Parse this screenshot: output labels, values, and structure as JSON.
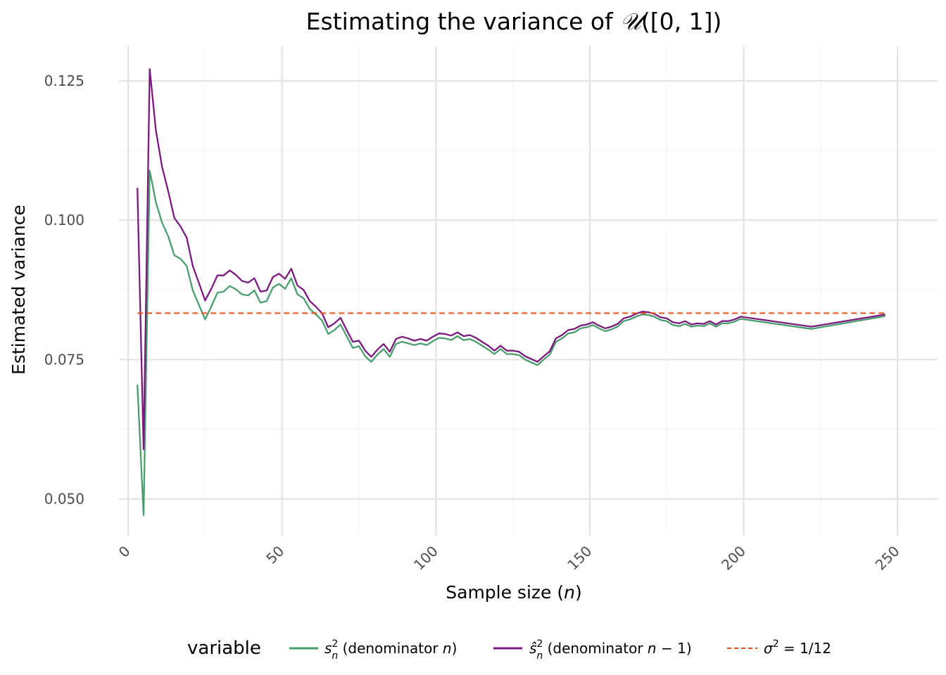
{
  "chart_data": {
    "type": "line",
    "title": "Estimating the variance of 𝒰([0, 1])",
    "title_prefix": "Estimating the variance of ",
    "title_symbol": "𝒰",
    "title_suffix": "([0, 1])",
    "xlabel": "Sample size (n)",
    "xlabel_prefix": "Sample size (",
    "xlabel_var": "n",
    "xlabel_suffix": ")",
    "ylabel": "Estimated variance",
    "xlim": [
      -3,
      263
    ],
    "ylim": [
      0.0434,
      0.1313
    ],
    "x_ticks": [
      0,
      50,
      100,
      150,
      200,
      250
    ],
    "x_tick_labels": [
      "0",
      "50",
      "100",
      "150",
      "200",
      "250"
    ],
    "y_ticks": [
      0.05,
      0.075,
      0.1,
      0.125
    ],
    "y_tick_labels": [
      "0.050",
      "0.075",
      "0.100",
      "0.125"
    ],
    "grid": true,
    "legend_position": "bottom",
    "legend_title": "variable",
    "x": [
      3,
      5,
      7,
      9,
      11,
      13,
      15,
      17,
      19,
      21,
      23,
      25,
      27,
      29,
      31,
      33,
      35,
      37,
      39,
      41,
      43,
      45,
      47,
      49,
      51,
      53,
      55,
      57,
      59,
      61,
      63,
      65,
      67,
      69,
      71,
      73,
      75,
      77,
      79,
      81,
      83,
      85,
      87,
      89,
      91,
      93,
      95,
      97,
      99,
      101,
      103,
      105,
      107,
      109,
      111,
      113,
      115,
      117,
      119,
      121,
      123,
      125,
      127,
      129,
      131,
      133,
      135,
      137,
      139,
      141,
      143,
      145,
      147,
      149,
      151,
      153,
      155,
      157,
      159,
      161,
      163,
      165,
      167,
      169,
      171,
      173,
      175,
      177,
      179,
      181,
      183,
      185,
      187,
      189,
      191,
      193,
      195,
      197,
      199,
      222,
      246
    ],
    "series": [
      {
        "name": "s_n^2 (denominator n)",
        "label_main": "s",
        "label_sup": "2",
        "label_sub": "n",
        "label_rest": " (denominator ",
        "label_var": "n",
        "label_end": ")",
        "color": "#4a9e6e",
        "style": "solid",
        "values": [
          0.0705,
          0.0471,
          0.1089,
          0.1032,
          0.0996,
          0.0971,
          0.0937,
          0.0931,
          0.0918,
          0.0874,
          0.0848,
          0.0822,
          0.0845,
          0.087,
          0.0872,
          0.0882,
          0.0876,
          0.0867,
          0.0865,
          0.0874,
          0.0852,
          0.0855,
          0.0879,
          0.0886,
          0.0877,
          0.0896,
          0.0867,
          0.086,
          0.0841,
          0.0831,
          0.082,
          0.0796,
          0.0803,
          0.0813,
          0.0792,
          0.0771,
          0.0774,
          0.0756,
          0.0746,
          0.0759,
          0.0769,
          0.0755,
          0.0778,
          0.0782,
          0.0779,
          0.0776,
          0.0779,
          0.0776,
          0.0783,
          0.0789,
          0.0788,
          0.0785,
          0.0792,
          0.0785,
          0.0787,
          0.0782,
          0.0775,
          0.0768,
          0.076,
          0.0769,
          0.076,
          0.076,
          0.0758,
          0.075,
          0.0745,
          0.074,
          0.075,
          0.0759,
          0.0782,
          0.0788,
          0.0797,
          0.0799,
          0.0806,
          0.0808,
          0.0812,
          0.0806,
          0.0801,
          0.0804,
          0.0809,
          0.0819,
          0.0822,
          0.0827,
          0.0831,
          0.083,
          0.0827,
          0.0821,
          0.0819,
          0.0812,
          0.081,
          0.0814,
          0.0809,
          0.0811,
          0.081,
          0.0815,
          0.0809,
          0.0815,
          0.0815,
          0.0818,
          0.0823,
          0.0805,
          0.0828
        ]
      },
      {
        "name": "ŝ_n^2 (denominator n − 1)",
        "label_main": "ŝ",
        "label_sup": "2",
        "label_sub": "n",
        "label_rest": " (denominator ",
        "label_var": "n",
        "label_minus": " − 1",
        "label_end": ")",
        "color": "#7b1a7e",
        "style": "solid",
        "values": [
          0.1058,
          0.0589,
          0.1271,
          0.1161,
          0.1096,
          0.1052,
          0.1004,
          0.0989,
          0.0969,
          0.0918,
          0.0887,
          0.0856,
          0.0877,
          0.0901,
          0.0901,
          0.091,
          0.0902,
          0.0891,
          0.0888,
          0.0896,
          0.0872,
          0.0874,
          0.0898,
          0.0904,
          0.0895,
          0.0913,
          0.0883,
          0.0875,
          0.0855,
          0.0845,
          0.0833,
          0.0808,
          0.0815,
          0.0825,
          0.0803,
          0.0782,
          0.0784,
          0.0766,
          0.0755,
          0.0768,
          0.0778,
          0.0764,
          0.0787,
          0.0791,
          0.0788,
          0.0784,
          0.0787,
          0.0784,
          0.0791,
          0.0797,
          0.0796,
          0.0793,
          0.0799,
          0.0792,
          0.0794,
          0.0789,
          0.0782,
          0.0775,
          0.0766,
          0.0775,
          0.0766,
          0.0766,
          0.0764,
          0.0756,
          0.0751,
          0.0746,
          0.0756,
          0.0765,
          0.0788,
          0.0794,
          0.0803,
          0.0805,
          0.0811,
          0.0813,
          0.0817,
          0.0811,
          0.0806,
          0.0809,
          0.0814,
          0.0824,
          0.0827,
          0.0832,
          0.0836,
          0.0835,
          0.0832,
          0.0826,
          0.0824,
          0.0817,
          0.0815,
          0.0819,
          0.0813,
          0.0815,
          0.0814,
          0.0819,
          0.0813,
          0.0819,
          0.0819,
          0.0822,
          0.0827,
          0.0809,
          0.0831
        ]
      },
      {
        "name": "σ^2 = 1/12",
        "label_main": "σ",
        "label_sup": "2",
        "label_rest": " = 1/12",
        "color": "#e8541c",
        "style": "dashed",
        "x": [
          3,
          246
        ],
        "values": [
          0.083333,
          0.083333
        ]
      }
    ]
  }
}
